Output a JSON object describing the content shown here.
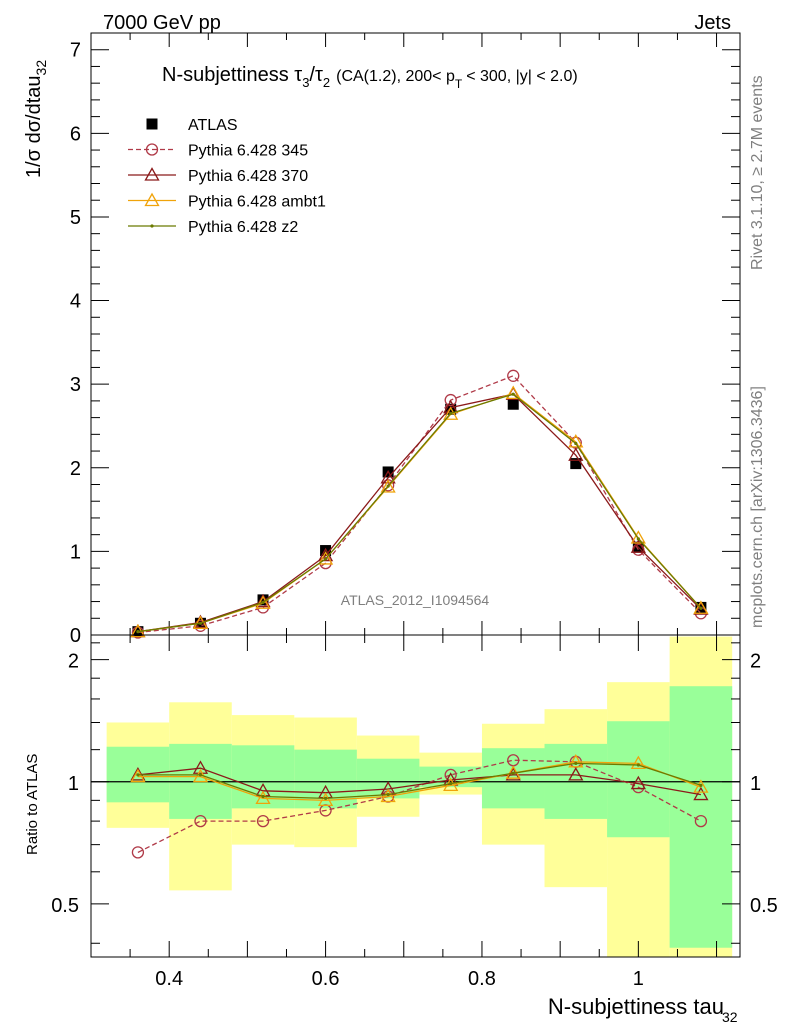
{
  "header": {
    "left": "7000 GeV pp",
    "right": "Jets",
    "side_rivet": "Rivet 3.1.10, ≥ 2.7M events",
    "side_mcplots": "mcplots.cern.ch [arXiv:1306.3436]"
  },
  "chart_data": [
    {
      "type": "line",
      "title_main": "N-subjettiness",
      "title_tau3": "τ",
      "title_sub3": "3",
      "title_slash": "/",
      "title_tau2": "τ",
      "title_sub2": "2",
      "title_cuts_a": "(CA(1.2), 200< p",
      "title_cuts_T": "T",
      "title_cuts_b": "< 300, |y| < 2.0)",
      "ylabel_main": "1/σ dσ/dtau",
      "ylabel_sub": "32",
      "analysis_label": "ATLAS_2012_I1094564",
      "xlim": [
        0.3,
        1.13
      ],
      "ylim": [
        0,
        7.2
      ],
      "yticks": [
        "0",
        "1",
        "2",
        "3",
        "4",
        "5",
        "6",
        "7"
      ],
      "x": [
        0.36,
        0.44,
        0.52,
        0.6,
        0.68,
        0.76,
        0.84,
        0.92,
        1.0,
        1.08
      ],
      "bin_edges": [
        0.32,
        0.4,
        0.48,
        0.56,
        0.64,
        0.72,
        0.8,
        0.88,
        0.96,
        1.04,
        1.12
      ],
      "legend": [
        {
          "name": "ATLAS",
          "color": "#000000",
          "marker": "square",
          "dash": "solid"
        },
        {
          "name": "Pythia 6.428 345",
          "color": "#b03a48",
          "marker": "circle",
          "dash": "dashed"
        },
        {
          "name": "Pythia 6.428 370",
          "color": "#8b1a1a",
          "marker": "triangle",
          "dash": "solid"
        },
        {
          "name": "Pythia 6.428 ambt1",
          "color": "#f0a30a",
          "marker": "triangle",
          "dash": "solid"
        },
        {
          "name": "Pythia 6.428 z2",
          "color": "#6b7a00",
          "marker": "dot",
          "dash": "solid"
        }
      ],
      "series": [
        {
          "name": "ATLAS",
          "values": [
            0.04,
            0.14,
            0.42,
            1.01,
            1.95,
            2.7,
            2.76,
            2.05,
            1.05,
            0.33
          ]
        },
        {
          "name": "Pythia 6.428 345",
          "values": [
            0.03,
            0.11,
            0.33,
            0.86,
            1.79,
            2.81,
            3.1,
            2.3,
            1.02,
            0.26
          ]
        },
        {
          "name": "Pythia 6.428 370",
          "values": [
            0.04,
            0.15,
            0.4,
            0.95,
            1.88,
            2.72,
            2.88,
            2.15,
            1.05,
            0.31
          ]
        },
        {
          "name": "Pythia 6.428 ambt1",
          "values": [
            0.04,
            0.14,
            0.38,
            0.91,
            1.77,
            2.64,
            2.89,
            2.31,
            1.16,
            0.32
          ]
        },
        {
          "name": "Pythia 6.428 z2",
          "values": [
            0.04,
            0.14,
            0.39,
            0.91,
            1.78,
            2.65,
            2.88,
            2.29,
            1.15,
            0.32
          ]
        }
      ]
    },
    {
      "type": "line",
      "ylabel": "Ratio to ATLAS",
      "xlabel_main": "N-subjettiness tau",
      "xlabel_sub": "32",
      "xlim": [
        0.3,
        1.13
      ],
      "ylim": [
        0.37,
        2.3
      ],
      "xticks": [
        "0.4",
        "0.6",
        "0.8",
        "1"
      ],
      "xtick_values": [
        0.4,
        0.6,
        0.8,
        1.0
      ],
      "yticks": [
        "0.5",
        "1",
        "2"
      ],
      "ytick_values": [
        0.5,
        1.0,
        2.0
      ],
      "reference_line": 1.0,
      "bin_edges": [
        0.32,
        0.4,
        0.48,
        0.56,
        0.64,
        0.72,
        0.8,
        0.88,
        0.96,
        1.04,
        1.12
      ],
      "band_total": [
        [
          0.77,
          1.4
        ],
        [
          0.54,
          1.57
        ],
        [
          0.7,
          1.46
        ],
        [
          0.69,
          1.44
        ],
        [
          0.82,
          1.3
        ],
        [
          0.93,
          1.18
        ],
        [
          0.7,
          1.39
        ],
        [
          0.55,
          1.51
        ],
        [
          0.37,
          1.76
        ],
        [
          0.37,
          2.28
        ]
      ],
      "band_stat": [
        [
          0.89,
          1.22
        ],
        [
          0.81,
          1.24
        ],
        [
          0.86,
          1.23
        ],
        [
          0.86,
          1.2
        ],
        [
          0.91,
          1.14
        ],
        [
          0.97,
          1.09
        ],
        [
          0.86,
          1.21
        ],
        [
          0.81,
          1.24
        ],
        [
          0.73,
          1.41
        ],
        [
          0.39,
          1.72
        ]
      ],
      "series": [
        {
          "name": "Pythia 6.428 345",
          "values": [
            0.67,
            0.8,
            0.8,
            0.85,
            0.92,
            1.04,
            1.13,
            1.12,
            0.97,
            0.8
          ]
        },
        {
          "name": "Pythia 6.428 370",
          "values": [
            1.04,
            1.08,
            0.95,
            0.94,
            0.96,
            1.01,
            1.04,
            1.04,
            0.99,
            0.93
          ]
        },
        {
          "name": "Pythia 6.428 ambt1",
          "values": [
            1.03,
            1.03,
            0.91,
            0.9,
            0.92,
            0.98,
            1.05,
            1.12,
            1.11,
            0.97
          ]
        },
        {
          "name": "Pythia 6.428 z2",
          "values": [
            1.04,
            1.04,
            0.92,
            0.91,
            0.93,
            0.99,
            1.05,
            1.11,
            1.1,
            0.98
          ]
        }
      ]
    }
  ]
}
